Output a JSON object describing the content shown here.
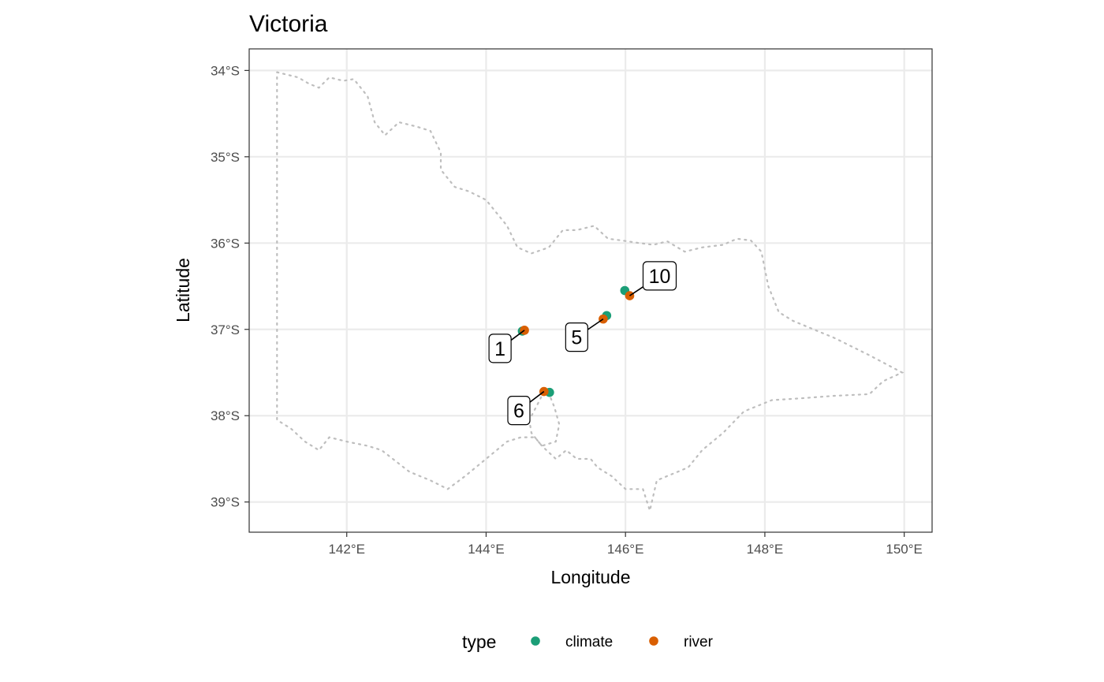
{
  "title": "Victoria",
  "chart_data": {
    "type": "scatter",
    "title": "Victoria",
    "xlabel": "Longitude",
    "ylabel": "Latitude",
    "xlim": [
      140.6,
      150.4
    ],
    "ylim": [
      -39.35,
      -33.75
    ],
    "x_ticks": [
      {
        "value": 142,
        "label": "142°E"
      },
      {
        "value": 144,
        "label": "144°E"
      },
      {
        "value": 146,
        "label": "146°E"
      },
      {
        "value": 148,
        "label": "148°E"
      },
      {
        "value": 150,
        "label": "150°E"
      }
    ],
    "y_ticks": [
      {
        "value": -34,
        "label": "34°S"
      },
      {
        "value": -35,
        "label": "35°S"
      },
      {
        "value": -36,
        "label": "36°S"
      },
      {
        "value": -37,
        "label": "37°S"
      },
      {
        "value": -38,
        "label": "38°S"
      },
      {
        "value": -39,
        "label": "39°S"
      }
    ],
    "grid": true,
    "legend": {
      "title": "type",
      "position": "bottom",
      "entries": [
        {
          "name": "climate",
          "color": "#1b9e77"
        },
        {
          "name": "river",
          "color": "#d95f02"
        }
      ]
    },
    "series": [
      {
        "name": "climate",
        "color": "#1b9e77",
        "points": [
          [
            144.52,
            -37.02
          ],
          [
            144.91,
            -37.73
          ],
          [
            145.73,
            -36.84
          ],
          [
            145.99,
            -36.55
          ]
        ]
      },
      {
        "name": "river",
        "color": "#d95f02",
        "points": [
          [
            144.55,
            -37.01
          ],
          [
            144.83,
            -37.72
          ],
          [
            145.68,
            -36.88
          ],
          [
            146.06,
            -36.61
          ]
        ]
      }
    ],
    "labels": [
      {
        "text": "1",
        "x": 144.2,
        "y": -37.22,
        "px": 144.55,
        "py": -37.01
      },
      {
        "text": "5",
        "x": 145.3,
        "y": -37.09,
        "px": 145.68,
        "py": -36.88
      },
      {
        "text": "6",
        "x": 144.47,
        "y": -37.94,
        "px": 144.83,
        "py": -37.72
      },
      {
        "text": "10",
        "x": 146.49,
        "y": -36.38,
        "px": 146.06,
        "py": -36.61
      }
    ],
    "boundary": [
      [
        141.0,
        -34.02
      ],
      [
        141.3,
        -34.08
      ],
      [
        141.45,
        -34.15
      ],
      [
        141.6,
        -34.2
      ],
      [
        141.75,
        -34.08
      ],
      [
        141.95,
        -34.12
      ],
      [
        142.1,
        -34.1
      ],
      [
        142.3,
        -34.3
      ],
      [
        142.4,
        -34.6
      ],
      [
        142.55,
        -34.75
      ],
      [
        142.75,
        -34.6
      ],
      [
        143.0,
        -34.65
      ],
      [
        143.2,
        -34.7
      ],
      [
        143.35,
        -34.95
      ],
      [
        143.35,
        -35.15
      ],
      [
        143.55,
        -35.35
      ],
      [
        143.75,
        -35.4
      ],
      [
        144.0,
        -35.5
      ],
      [
        144.3,
        -35.8
      ],
      [
        144.45,
        -36.05
      ],
      [
        144.65,
        -36.12
      ],
      [
        144.9,
        -36.05
      ],
      [
        145.1,
        -35.85
      ],
      [
        145.3,
        -35.85
      ],
      [
        145.55,
        -35.8
      ],
      [
        145.75,
        -35.95
      ],
      [
        145.95,
        -35.97
      ],
      [
        146.2,
        -36.0
      ],
      [
        146.4,
        -36.02
      ],
      [
        146.6,
        -35.98
      ],
      [
        146.85,
        -36.1
      ],
      [
        147.1,
        -36.05
      ],
      [
        147.4,
        -36.02
      ],
      [
        147.6,
        -35.95
      ],
      [
        147.8,
        -35.97
      ],
      [
        147.95,
        -36.1
      ],
      [
        148.05,
        -36.5
      ],
      [
        148.2,
        -36.8
      ],
      [
        148.4,
        -36.9
      ],
      [
        148.7,
        -37.0
      ],
      [
        149.0,
        -37.1
      ],
      [
        149.5,
        -37.3
      ],
      [
        149.97,
        -37.5
      ],
      [
        149.7,
        -37.6
      ],
      [
        149.5,
        -37.75
      ],
      [
        149.0,
        -37.77
      ],
      [
        148.5,
        -37.8
      ],
      [
        148.1,
        -37.82
      ],
      [
        147.7,
        -37.95
      ],
      [
        147.4,
        -38.2
      ],
      [
        147.1,
        -38.4
      ],
      [
        146.9,
        -38.6
      ],
      [
        146.6,
        -38.7
      ],
      [
        146.45,
        -38.75
      ],
      [
        146.35,
        -39.1
      ],
      [
        146.25,
        -38.85
      ],
      [
        146.0,
        -38.85
      ],
      [
        145.8,
        -38.7
      ],
      [
        145.6,
        -38.6
      ],
      [
        145.5,
        -38.5
      ],
      [
        145.3,
        -38.5
      ],
      [
        145.15,
        -38.4
      ],
      [
        145.0,
        -38.5
      ],
      [
        144.8,
        -38.35
      ],
      [
        144.7,
        -38.25
      ],
      [
        144.5,
        -38.25
      ],
      [
        144.3,
        -38.3
      ],
      [
        144.0,
        -38.5
      ],
      [
        143.7,
        -38.7
      ],
      [
        143.45,
        -38.85
      ],
      [
        143.2,
        -38.75
      ],
      [
        142.9,
        -38.65
      ],
      [
        142.5,
        -38.4
      ],
      [
        142.3,
        -38.35
      ],
      [
        142.0,
        -38.3
      ],
      [
        141.75,
        -38.25
      ],
      [
        141.6,
        -38.4
      ],
      [
        141.4,
        -38.3
      ],
      [
        141.2,
        -38.15
      ],
      [
        141.0,
        -38.05
      ],
      [
        141.0,
        -34.02
      ]
    ],
    "bay": [
      [
        144.83,
        -37.72
      ],
      [
        144.75,
        -37.85
      ],
      [
        144.62,
        -38.05
      ],
      [
        144.65,
        -38.2
      ],
      [
        144.8,
        -38.35
      ],
      [
        145.0,
        -38.3
      ],
      [
        145.05,
        -38.1
      ],
      [
        144.98,
        -37.9
      ],
      [
        144.92,
        -37.78
      ]
    ]
  }
}
